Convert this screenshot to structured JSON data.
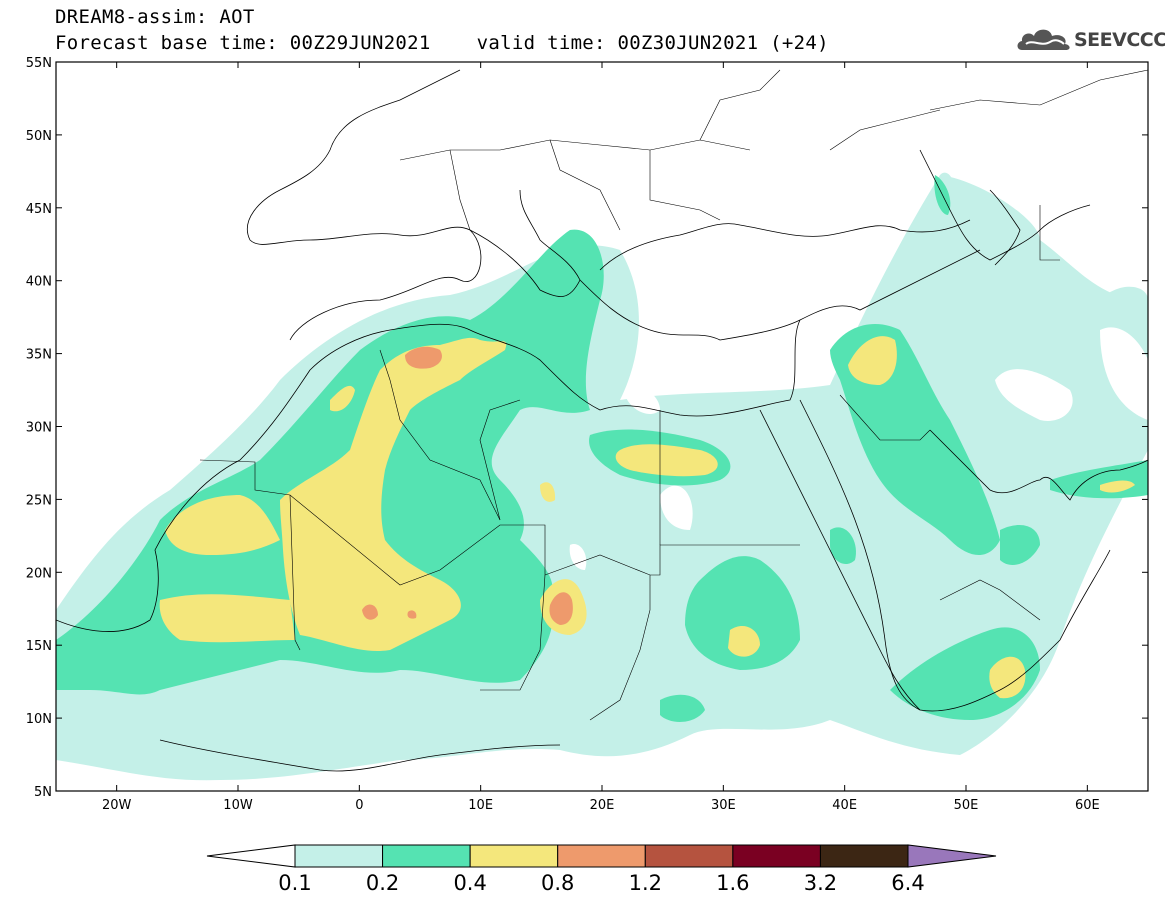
{
  "header": {
    "title": "DREAM8-assim: AOT",
    "base_time": "Forecast base time: 00Z29JUN2021",
    "valid_time": "valid time: 00Z30JUN2021 (+24)"
  },
  "logo": {
    "text": "SEEVCCC",
    "icon": "cloud-icon"
  },
  "map": {
    "lon_range": [
      -25,
      65
    ],
    "lat_range": [
      5,
      55
    ],
    "lat_labels": [
      {
        "lat": 55,
        "text": "55N"
      },
      {
        "lat": 50,
        "text": "50N"
      },
      {
        "lat": 45,
        "text": "45N"
      },
      {
        "lat": 40,
        "text": "40N"
      },
      {
        "lat": 35,
        "text": "35N"
      },
      {
        "lat": 30,
        "text": "30N"
      },
      {
        "lat": 25,
        "text": "25N"
      },
      {
        "lat": 20,
        "text": "20N"
      },
      {
        "lat": 15,
        "text": "15N"
      },
      {
        "lat": 10,
        "text": "10N"
      },
      {
        "lat": 5,
        "text": "5N"
      }
    ],
    "lon_labels": [
      {
        "lon": -20,
        "text": "20W"
      },
      {
        "lon": -10,
        "text": "10W"
      },
      {
        "lon": 0,
        "text": "0"
      },
      {
        "lon": 10,
        "text": "10E"
      },
      {
        "lon": 20,
        "text": "20E"
      },
      {
        "lon": 30,
        "text": "30E"
      },
      {
        "lon": 40,
        "text": "40E"
      },
      {
        "lon": 50,
        "text": "50E"
      },
      {
        "lon": 60,
        "text": "60E"
      }
    ]
  },
  "colorbar": {
    "levels": [
      "0.1",
      "0.2",
      "0.4",
      "0.8",
      "1.2",
      "1.6",
      "3.2",
      "6.4"
    ],
    "colors": [
      "#c4f0e8",
      "#55e3b2",
      "#f4e77c",
      "#ee9a6c",
      "#b5533f",
      "#7a0022",
      "#3c2614"
    ],
    "over_color": "#9977bb",
    "under_color": "#ffffff"
  },
  "colors": {
    "aot_0_1": "#c4f0e8",
    "aot_0_2": "#55e3b2",
    "aot_0_4": "#f4e77c",
    "aot_0_8": "#ee9a6c",
    "aot_1_2": "#b5533f"
  }
}
